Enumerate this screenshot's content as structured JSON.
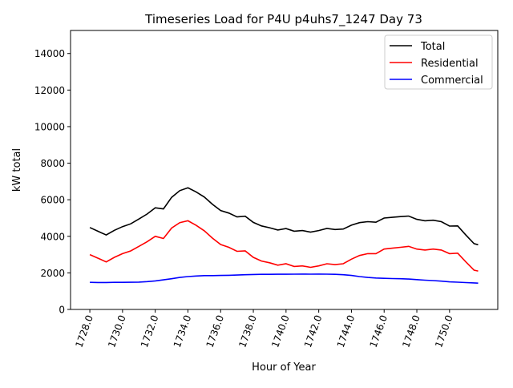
{
  "chart_data": {
    "type": "line",
    "title": "Timeseries Load for P4U p4uhs7_1247  Day 73",
    "xlabel": "Hour of Year",
    "ylabel": "kW total",
    "xlim": [
      1726.82,
      1752.95
    ],
    "ylim": [
      0,
      15260
    ],
    "grid": false,
    "legend_position": "top-right",
    "x_ticks": [
      "1728.0",
      "1730.0",
      "1732.0",
      "1734.0",
      "1736.0",
      "1738.0",
      "1740.0",
      "1742.0",
      "1744.0",
      "1746.0",
      "1748.0",
      "1750.0"
    ],
    "x_tick_values": [
      1728,
      1730,
      1732,
      1734,
      1736,
      1738,
      1740,
      1742,
      1744,
      1746,
      1748,
      1750
    ],
    "y_ticks": [
      "0",
      "2000",
      "4000",
      "6000",
      "8000",
      "10000",
      "12000",
      "14000"
    ],
    "y_tick_values": [
      0,
      2000,
      4000,
      6000,
      8000,
      10000,
      12000,
      14000
    ],
    "x": [
      1728,
      1728.5,
      1729,
      1729.5,
      1730,
      1730.5,
      1731,
      1731.5,
      1732,
      1732.5,
      1733,
      1733.5,
      1734,
      1734.5,
      1735,
      1735.5,
      1736,
      1736.5,
      1737,
      1737.5,
      1738,
      1738.5,
      1739,
      1739.5,
      1740,
      1740.5,
      1741,
      1741.5,
      1742,
      1742.5,
      1743,
      1743.5,
      1744,
      1744.5,
      1745,
      1745.5,
      1746,
      1746.5,
      1747,
      1747.5,
      1748,
      1748.5,
      1749,
      1749.5,
      1750,
      1750.5,
      1751,
      1751.5,
      1751.75
    ],
    "series": [
      {
        "name": "Total",
        "color": "#000000",
        "values": [
          4480,
          4275,
          4075,
          4330,
          4530,
          4685,
          4945,
          5220,
          5560,
          5500,
          6130,
          6500,
          6650,
          6430,
          6150,
          5750,
          5410,
          5270,
          5060,
          5100,
          4760,
          4570,
          4470,
          4345,
          4425,
          4280,
          4315,
          4230,
          4315,
          4430,
          4370,
          4400,
          4610,
          4750,
          4800,
          4770,
          5000,
          5040,
          5080,
          5110,
          4930,
          4850,
          4880,
          4800,
          4560,
          4570,
          4070,
          3600,
          3540
        ]
      },
      {
        "name": "Residential",
        "color": "#ff0000",
        "values": [
          3000,
          2800,
          2600,
          2850,
          3050,
          3200,
          3450,
          3700,
          4000,
          3880,
          4450,
          4750,
          4850,
          4600,
          4300,
          3900,
          3550,
          3400,
          3180,
          3200,
          2850,
          2650,
          2550,
          2420,
          2500,
          2350,
          2380,
          2300,
          2380,
          2500,
          2450,
          2500,
          2750,
          2950,
          3050,
          3050,
          3300,
          3350,
          3400,
          3450,
          3300,
          3250,
          3300,
          3250,
          3050,
          3080,
          2600,
          2150,
          2100
        ]
      },
      {
        "name": "Commercial",
        "color": "#0000ff",
        "values": [
          1480,
          1475,
          1475,
          1480,
          1480,
          1485,
          1495,
          1520,
          1560,
          1620,
          1680,
          1750,
          1800,
          1830,
          1850,
          1850,
          1860,
          1870,
          1880,
          1900,
          1910,
          1920,
          1920,
          1925,
          1925,
          1930,
          1935,
          1930,
          1935,
          1930,
          1920,
          1900,
          1860,
          1800,
          1750,
          1720,
          1700,
          1690,
          1680,
          1660,
          1630,
          1600,
          1580,
          1550,
          1510,
          1490,
          1470,
          1450,
          1440
        ]
      }
    ]
  }
}
